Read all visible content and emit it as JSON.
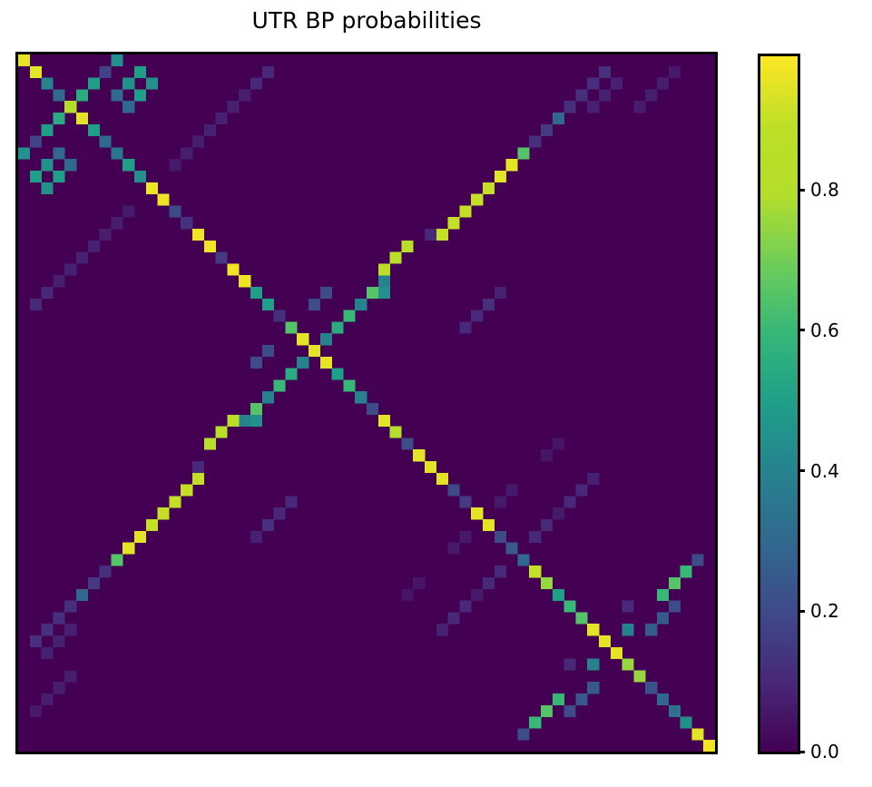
{
  "chart_data": {
    "type": "heatmap",
    "title": "UTR BP probabilities",
    "colormap": "viridis",
    "matrix_size": 60,
    "symmetric": true,
    "value_range": [
      0.0,
      0.99
    ],
    "grid": false,
    "axis_tick_labels": "none",
    "background_value": 0.0,
    "background_color": "#440154",
    "max_color": "#fde725",
    "colorbar": {
      "side": "right",
      "vmin": 0.0,
      "vmax": 0.99,
      "ticks": [
        {
          "label": "0.0",
          "value": 0.0
        },
        {
          "label": "0.2",
          "value": 0.2
        },
        {
          "label": "0.4",
          "value": 0.4
        },
        {
          "label": "0.6",
          "value": 0.6
        },
        {
          "label": "0.8",
          "value": 0.8
        }
      ]
    },
    "cells_sparse_row_col_prob": [
      [
        0,
        0,
        0.95
      ],
      [
        1,
        1,
        0.95
      ],
      [
        2,
        2,
        0.4
      ],
      [
        3,
        3,
        0.3
      ],
      [
        4,
        4,
        0.8
      ],
      [
        5,
        5,
        0.95
      ],
      [
        6,
        6,
        0.5
      ],
      [
        7,
        7,
        0.3
      ],
      [
        8,
        8,
        0.35
      ],
      [
        9,
        9,
        0.5
      ],
      [
        10,
        10,
        0.45
      ],
      [
        11,
        11,
        0.97
      ],
      [
        12,
        12,
        0.97
      ],
      [
        13,
        13,
        0.2
      ],
      [
        14,
        14,
        0.12
      ],
      [
        15,
        15,
        0.97
      ],
      [
        16,
        16,
        0.97
      ],
      [
        17,
        17,
        0.15
      ],
      [
        18,
        18,
        0.97
      ],
      [
        19,
        19,
        0.97
      ],
      [
        20,
        20,
        0.5
      ],
      [
        21,
        21,
        0.5
      ],
      [
        22,
        22,
        0.12
      ],
      [
        23,
        23,
        0.65
      ],
      [
        24,
        24,
        0.95
      ],
      [
        25,
        25,
        0.95
      ],
      [
        26,
        26,
        0.95
      ],
      [
        27,
        27,
        0.5
      ],
      [
        28,
        28,
        0.6
      ],
      [
        29,
        29,
        0.4
      ],
      [
        30,
        30,
        0.2
      ],
      [
        31,
        31,
        0.95
      ],
      [
        32,
        32,
        0.8
      ],
      [
        33,
        33,
        0.2
      ],
      [
        34,
        34,
        0.95
      ],
      [
        35,
        35,
        0.95
      ],
      [
        36,
        36,
        0.95
      ],
      [
        37,
        37,
        0.2
      ],
      [
        38,
        38,
        0.15
      ],
      [
        39,
        39,
        0.95
      ],
      [
        40,
        40,
        0.95
      ],
      [
        41,
        41,
        0.2
      ],
      [
        42,
        42,
        0.25
      ],
      [
        43,
        43,
        0.3
      ],
      [
        44,
        44,
        0.9
      ],
      [
        45,
        45,
        0.75
      ],
      [
        46,
        46,
        0.5
      ],
      [
        47,
        47,
        0.6
      ],
      [
        48,
        48,
        0.65
      ],
      [
        49,
        49,
        0.95
      ],
      [
        50,
        50,
        0.95
      ],
      [
        51,
        51,
        0.95
      ],
      [
        52,
        52,
        0.75
      ],
      [
        53,
        53,
        0.75
      ],
      [
        54,
        54,
        0.22
      ],
      [
        55,
        55,
        0.3
      ],
      [
        56,
        56,
        0.33
      ],
      [
        57,
        57,
        0.45
      ],
      [
        58,
        58,
        0.95
      ],
      [
        59,
        59,
        0.97
      ],
      [
        3,
        5,
        0.55
      ],
      [
        2,
        6,
        0.5
      ],
      [
        1,
        7,
        0.18
      ],
      [
        0,
        8,
        0.45
      ],
      [
        2,
        9,
        0.45
      ],
      [
        1,
        10,
        0.5
      ],
      [
        3,
        10,
        0.5
      ],
      [
        2,
        11,
        0.45
      ],
      [
        3,
        8,
        0.3
      ],
      [
        4,
        9,
        0.3
      ],
      [
        9,
        13,
        0.06
      ],
      [
        8,
        14,
        0.07
      ],
      [
        7,
        15,
        0.07
      ],
      [
        6,
        16,
        0.08
      ],
      [
        5,
        17,
        0.08
      ],
      [
        4,
        18,
        0.08
      ],
      [
        3,
        19,
        0.07
      ],
      [
        2,
        20,
        0.1
      ],
      [
        1,
        21,
        0.1
      ],
      [
        19,
        31,
        0.4
      ],
      [
        20,
        30,
        0.65
      ],
      [
        21,
        29,
        0.4
      ],
      [
        22,
        28,
        0.6
      ],
      [
        23,
        27,
        0.55
      ],
      [
        24,
        26,
        0.4
      ],
      [
        20,
        31,
        0.45
      ],
      [
        20,
        26,
        0.2
      ],
      [
        21,
        25,
        0.2
      ],
      [
        16,
        33,
        0.85
      ],
      [
        17,
        32,
        0.85
      ],
      [
        18,
        31,
        0.85
      ],
      [
        15,
        36,
        0.9
      ],
      [
        14,
        37,
        0.9
      ],
      [
        13,
        38,
        0.9
      ],
      [
        12,
        39,
        0.9
      ],
      [
        11,
        40,
        0.9
      ],
      [
        10,
        41,
        0.95
      ],
      [
        9,
        42,
        0.95
      ],
      [
        8,
        43,
        0.65
      ],
      [
        7,
        44,
        0.12
      ],
      [
        6,
        45,
        0.15
      ],
      [
        5,
        46,
        0.3
      ],
      [
        4,
        47,
        0.12
      ],
      [
        3,
        48,
        0.12
      ],
      [
        2,
        49,
        0.12
      ],
      [
        1,
        50,
        0.12
      ],
      [
        15,
        35,
        0.1
      ],
      [
        2,
        51,
        0.08
      ],
      [
        3,
        50,
        0.08
      ],
      [
        4,
        49,
        0.08
      ],
      [
        4,
        53,
        0.07
      ],
      [
        3,
        54,
        0.07
      ],
      [
        2,
        55,
        0.07
      ],
      [
        1,
        56,
        0.06
      ],
      [
        21,
        40,
        0.12
      ],
      [
        22,
        39,
        0.1
      ],
      [
        23,
        38,
        0.1
      ],
      [
        20,
        41,
        0.08
      ],
      [
        41,
        44,
        0.1
      ],
      [
        40,
        45,
        0.1
      ],
      [
        39,
        46,
        0.06
      ],
      [
        38,
        47,
        0.1
      ],
      [
        37,
        48,
        0.1
      ],
      [
        36,
        49,
        0.08
      ],
      [
        33,
        46,
        0.05
      ],
      [
        34,
        45,
        0.05
      ],
      [
        37,
        42,
        0.06
      ],
      [
        38,
        41,
        0.06
      ],
      [
        44,
        57,
        0.6
      ],
      [
        45,
        56,
        0.65
      ],
      [
        46,
        55,
        0.6
      ],
      [
        43,
        58,
        0.2
      ],
      [
        49,
        54,
        0.25
      ],
      [
        48,
        55,
        0.25
      ],
      [
        47,
        56,
        0.2
      ],
      [
        49,
        52,
        0.4
      ],
      [
        47,
        52,
        0.1
      ]
    ]
  },
  "viridis_stops": [
    [
      0.0,
      "#440154"
    ],
    [
      0.1,
      "#482878"
    ],
    [
      0.2,
      "#3e4a89"
    ],
    [
      0.3,
      "#31688e"
    ],
    [
      0.4,
      "#26828e"
    ],
    [
      0.5,
      "#1f9e89"
    ],
    [
      0.6,
      "#35b779"
    ],
    [
      0.7,
      "#6dcd59"
    ],
    [
      0.8,
      "#b4de2c"
    ],
    [
      0.9,
      "#bddf26"
    ],
    [
      1.0,
      "#fde725"
    ]
  ]
}
